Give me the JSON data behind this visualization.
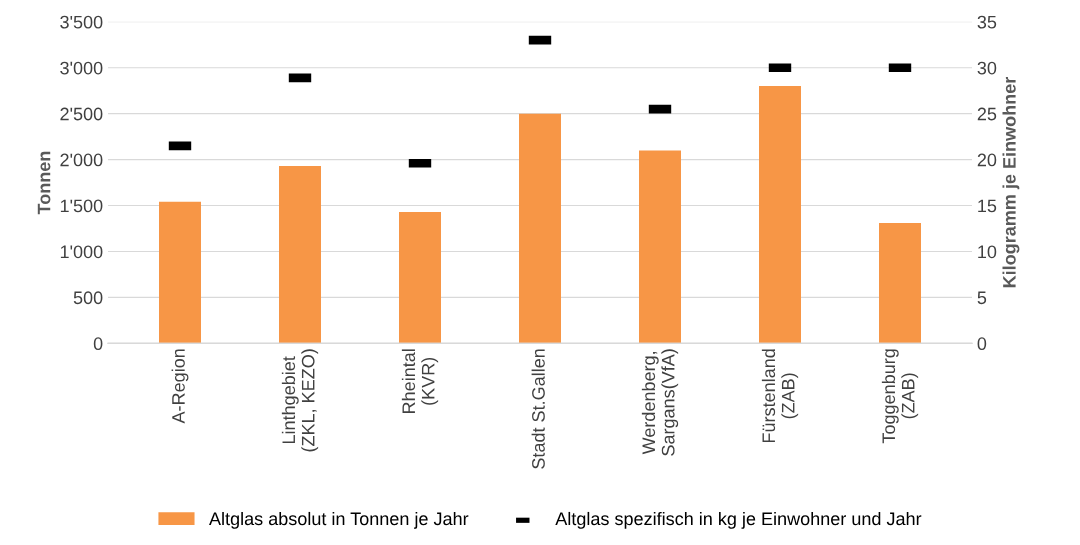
{
  "chart_data": {
    "type": "bar",
    "categories": [
      "A-Region",
      "Linthgebiet\n(ZKL, KEZO)",
      "Rheintal\n(KVR)",
      "Stadt St.Gallen",
      "Werdenberg,\nSargans(VfA)",
      "Fürstenland\n(ZAB)",
      "Toggenburg\n(ZAB)"
    ],
    "series": [
      {
        "name": "Altglas absolut in Tonnen je Jahr",
        "color": "#f79646",
        "values": [
          1540,
          1930,
          1430,
          2500,
          2100,
          2800,
          1310
        ]
      },
      {
        "name": "Altglas spezifisch in kg je Einwohner und Jahr",
        "color": "#000000",
        "type": "scatter",
        "axis": "y2",
        "values": [
          21.5,
          28.9,
          19.6,
          33.0,
          25.5,
          30.0,
          30.0
        ]
      }
    ],
    "ylabel": "Tonnen",
    "y2label": "Kilogramm je Einwohner",
    "ylim": [
      0,
      3500
    ],
    "yticks": [
      0,
      500,
      {
        "value": 1000,
        "label": "1'000"
      },
      {
        "value": 1500,
        "label": "1'500"
      },
      {
        "value": 2000,
        "label": "2'000"
      },
      {
        "value": 2500,
        "label": "2'500"
      },
      {
        "value": 3000,
        "label": "3'000"
      },
      {
        "value": 3500,
        "label": "3'500"
      }
    ],
    "y2lim": [
      0,
      35
    ],
    "y2ticks": [
      0,
      5,
      10,
      15,
      20,
      25,
      30,
      35
    ],
    "grid": "y",
    "legend": "bottom"
  }
}
